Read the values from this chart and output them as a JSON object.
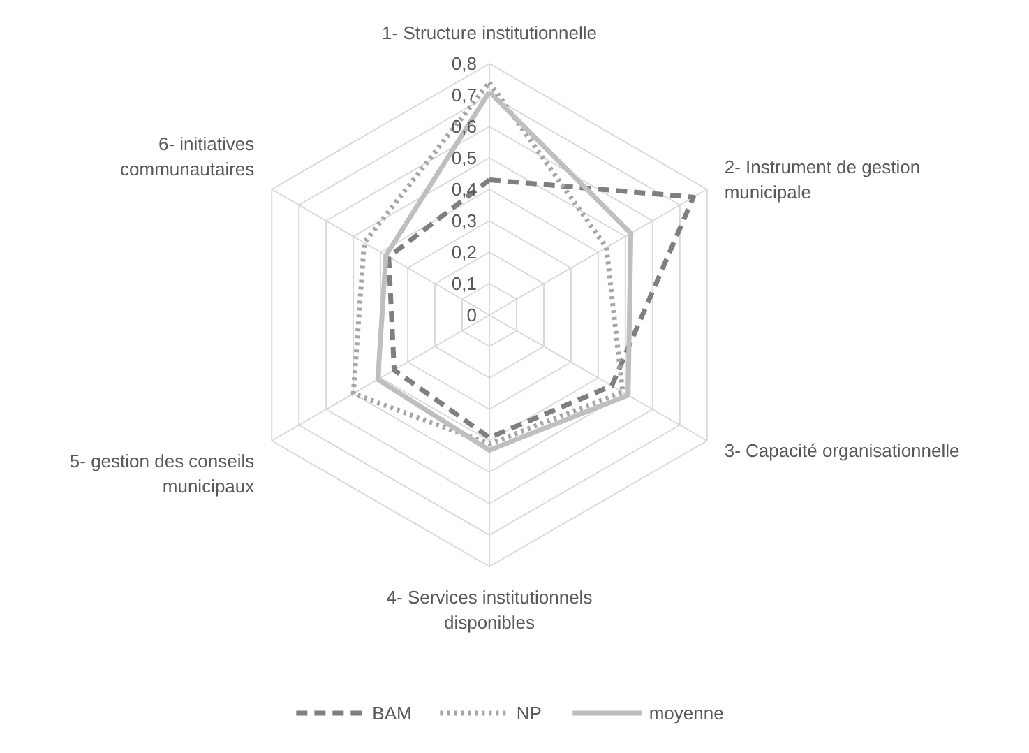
{
  "chart_data": {
    "type": "radar",
    "categories": [
      "1- Structure institutionnelle",
      "2- Instrument de gestion municipale",
      "3- Capacité organisationnelle",
      "4- Services institutionnels disponibles",
      "5- gestion des conseils municipaux",
      "6- initiatives communautaires"
    ],
    "series": [
      {
        "name": "BAM",
        "color": "#7f7f7f",
        "line_style": "dashed",
        "values": [
          0.43,
          0.75,
          0.45,
          0.39,
          0.35,
          0.37
        ]
      },
      {
        "name": "NP",
        "color": "#a6a6a6",
        "line_style": "dotted",
        "values": [
          0.74,
          0.43,
          0.49,
          0.41,
          0.5,
          0.46
        ]
      },
      {
        "name": "moyenne",
        "color": "#bfbfbf",
        "line_style": "solid",
        "values": [
          0.71,
          0.52,
          0.51,
          0.43,
          0.41,
          0.38
        ]
      }
    ],
    "ylim": [
      0,
      0.8
    ],
    "yticks": [
      {
        "value": 0,
        "label": "0"
      },
      {
        "value": 0.1,
        "label": "0,1"
      },
      {
        "value": 0.2,
        "label": "0,2"
      },
      {
        "value": 0.3,
        "label": "0,3"
      },
      {
        "value": 0.4,
        "label": "0,4"
      },
      {
        "value": 0.5,
        "label": "0,5"
      },
      {
        "value": 0.6,
        "label": "0,6"
      },
      {
        "value": 0.7,
        "label": "0,7"
      },
      {
        "value": 0.8,
        "label": "0,8"
      }
    ],
    "grid": true,
    "legend": "bottom"
  }
}
